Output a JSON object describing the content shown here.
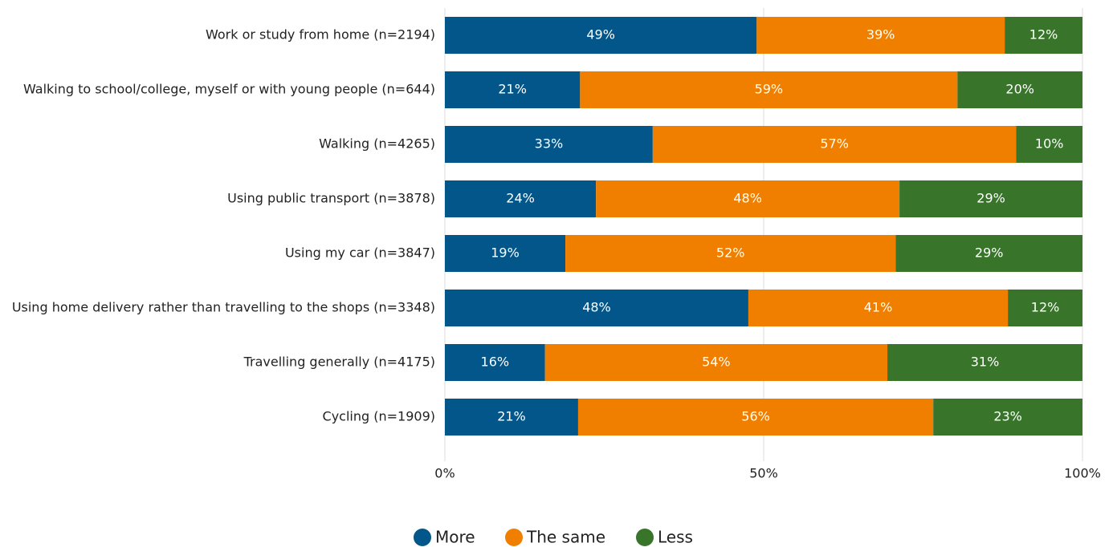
{
  "chart_data": {
    "type": "stacked-bar-horizontal",
    "categories": [
      "Work or study from home (n=2194)",
      "Walking to school/college, myself or with young people (n=644)",
      "Walking (n=4265)",
      "Using public transport (n=3878)",
      "Using my car (n=3847)",
      "Using home delivery rather than travelling to the shops (n=3348)",
      "Travelling generally (n=4175)",
      "Cycling (n=1909)"
    ],
    "series": [
      {
        "name": "More",
        "color": "#02568a",
        "values": [
          48.9,
          21.2,
          32.6,
          23.7,
          18.9,
          47.6,
          15.7,
          20.9
        ],
        "value_labels": [
          "49%",
          "21%",
          "33%",
          "24%",
          "19%",
          "48%",
          "16%",
          "21%"
        ]
      },
      {
        "name": "The same",
        "color": "#f07f00",
        "values": [
          38.9,
          59.2,
          57.0,
          47.6,
          51.8,
          40.7,
          53.7,
          55.7
        ],
        "value_labels": [
          "39%",
          "59%",
          "57%",
          "48%",
          "52%",
          "41%",
          "54%",
          "56%"
        ]
      },
      {
        "name": "Less",
        "color": "#38752a",
        "values": [
          12.2,
          19.6,
          10.4,
          28.7,
          29.3,
          11.7,
          30.6,
          23.4
        ],
        "value_labels": [
          "12%",
          "20%",
          "10%",
          "29%",
          "29%",
          "12%",
          "31%",
          "23%"
        ]
      }
    ],
    "xlim": [
      0,
      100
    ],
    "xticks": [
      {
        "value": 0,
        "label": "0%"
      },
      {
        "value": 50,
        "label": "50%"
      },
      {
        "value": 100,
        "label": "100%"
      }
    ],
    "grid": true,
    "legend": "bottom"
  }
}
